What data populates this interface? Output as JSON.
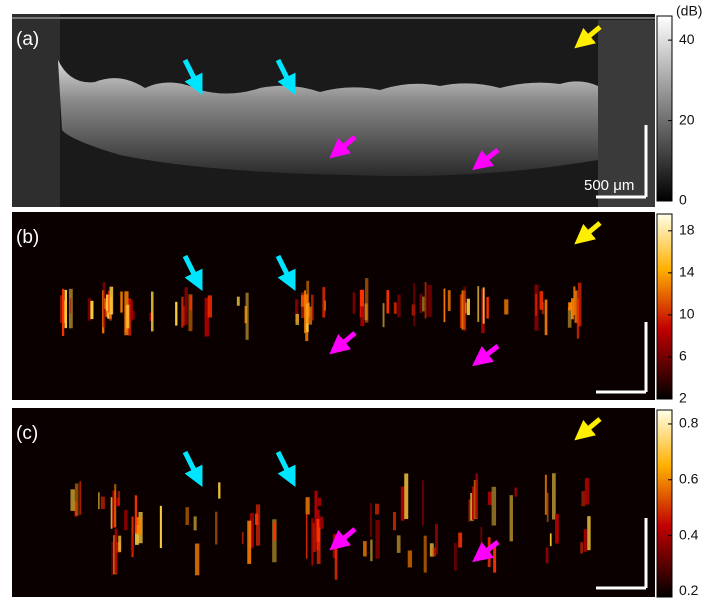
{
  "panels": [
    {
      "label": "(a)",
      "scale_bar": "500 μm",
      "colorbar": {
        "unit": "(dB)",
        "lim": [
          0,
          46
        ],
        "ticks": [
          0,
          20,
          40
        ]
      }
    },
    {
      "label": "(b)",
      "colorbar": {
        "lim": [
          2,
          19.6
        ],
        "ticks": [
          2,
          6,
          10,
          14,
          18
        ]
      }
    },
    {
      "label": "(c)",
      "colorbar": {
        "lim": [
          0.18,
          0.85
        ],
        "ticks": [
          0.2,
          0.4,
          0.6,
          0.8
        ]
      }
    }
  ]
}
